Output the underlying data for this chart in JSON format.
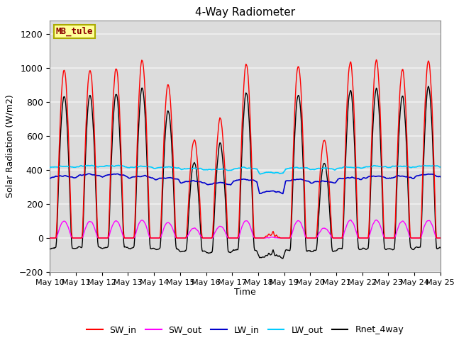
{
  "title": "4-Way Radiometer",
  "xlabel": "Time",
  "ylabel": "Solar Radiation (W/m2)",
  "ylim": [
    -200,
    1280
  ],
  "yticks": [
    -200,
    0,
    200,
    400,
    600,
    800,
    1000,
    1200
  ],
  "station_label": "MB_tule",
  "station_label_color": "#8B0000",
  "station_label_bg": "#FFFF99",
  "station_label_border": "#AAAA00",
  "colors": {
    "SW_in": "#FF0000",
    "SW_out": "#FF00FF",
    "LW_in": "#0000CC",
    "LW_out": "#00CCFF",
    "Rnet_4way": "#000000"
  },
  "x_tick_labels": [
    "May 10",
    "May 11",
    "May 12",
    "May 13",
    "May 14",
    "May 15",
    "May 16",
    "May 17",
    "May 18",
    "May 19",
    "May 20",
    "May 21",
    "May 22",
    "May 23",
    "May 24",
    "May 25"
  ],
  "num_days": 15,
  "background_color": "#FFFFFF",
  "plot_bg_color": "#DCDCDC",
  "grid_color": "#F0F0F0",
  "linewidth": 1.0,
  "peak_SW": [
    990,
    1000,
    1000,
    1050,
    910,
    580,
    700,
    1030,
    20,
    1020,
    580,
    1040,
    1050,
    1000,
    1040
  ],
  "lw_in_base": 290,
  "lw_out_base": 390
}
